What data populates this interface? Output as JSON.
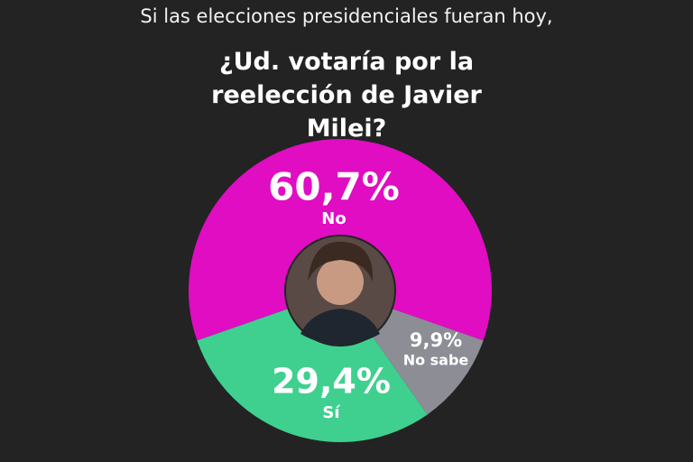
{
  "chart_data": {
    "type": "pie",
    "title": "Si las elecciones presidenciales fueran hoy,",
    "subtitle": "¿Ud. votaría por la reelección de Javier Milei?",
    "categories": [
      "No",
      "No sabe",
      "Sí"
    ],
    "values": [
      60.7,
      9.9,
      29.4
    ],
    "value_labels": [
      "60,7%",
      "9,9%",
      "29,4%"
    ],
    "colors": [
      "#e00dc2",
      "#8d8d96",
      "#3fd08f"
    ],
    "donut": true
  }
}
